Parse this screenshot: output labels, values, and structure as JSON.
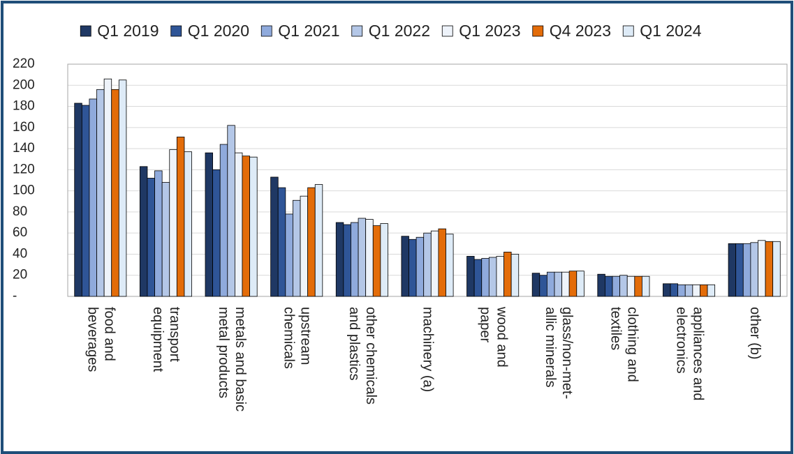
{
  "chart_data": {
    "type": "bar",
    "categories": [
      [
        "food and",
        "beverages"
      ],
      [
        "transport",
        "equipment"
      ],
      [
        "metals and basic",
        "metal products"
      ],
      [
        "upstream",
        "chemicals"
      ],
      [
        "other chemicals",
        "and plastics"
      ],
      [
        "machinery (a)"
      ],
      [
        "wood and",
        "paper"
      ],
      [
        "glass/non-met-",
        "allic minerals"
      ],
      [
        "clothing and",
        "textiles"
      ],
      [
        "appliances and",
        "electronics"
      ],
      [
        "other (b)"
      ]
    ],
    "series": [
      {
        "name": "Q1 2019",
        "color": "#1f3864",
        "values": [
          183,
          123,
          136,
          113,
          70,
          57,
          38,
          22,
          21,
          12,
          50
        ]
      },
      {
        "name": "Q1 2020",
        "color": "#2f5597",
        "values": [
          181,
          112,
          120,
          103,
          68,
          54,
          35,
          20,
          19,
          12,
          50
        ]
      },
      {
        "name": "Q1 2021",
        "color": "#8faadc",
        "values": [
          187,
          119,
          144,
          78,
          70,
          56,
          36,
          23,
          19,
          11,
          50
        ]
      },
      {
        "name": "Q1 2022",
        "color": "#b4c7e7",
        "values": [
          196,
          108,
          162,
          91,
          74,
          60,
          37,
          23,
          20,
          11,
          51
        ]
      },
      {
        "name": "Q1 2023",
        "color": "#eef3fa",
        "values": [
          206,
          139,
          136,
          95,
          73,
          62,
          38,
          23,
          19,
          11,
          53
        ]
      },
      {
        "name": "Q4 2023",
        "color": "#e36c09",
        "values": [
          196,
          151,
          133,
          103,
          67,
          64,
          42,
          24,
          19,
          11,
          52
        ]
      },
      {
        "name": "Q1 2024",
        "color": "#deebf7",
        "values": [
          205,
          137,
          132,
          106,
          69,
          59,
          40,
          24,
          19,
          11,
          52
        ]
      }
    ],
    "ylim": [
      0,
      220
    ],
    "yticks": [
      {
        "value": 0,
        "label": "-"
      },
      20,
      40,
      60,
      80,
      100,
      120,
      140,
      160,
      180,
      200,
      220
    ],
    "grid": true
  }
}
